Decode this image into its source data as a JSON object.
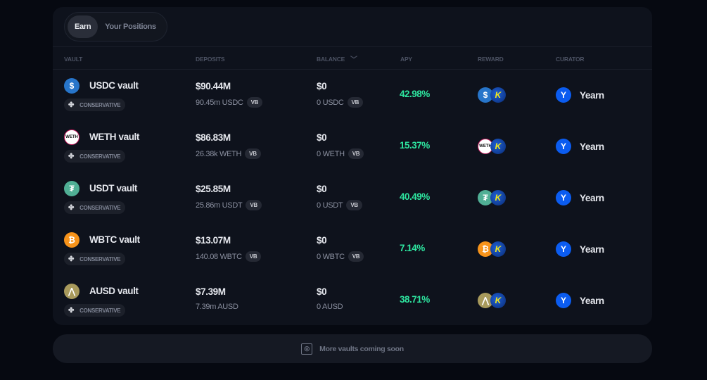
{
  "tabs": [
    "Earn",
    "Your Positions"
  ],
  "headers": {
    "vault": "VAULT",
    "deposits": "DEPOSITS",
    "balance": "BALANCE",
    "apy": "APY",
    "reward": "REWARD",
    "curator": "CURATOR"
  },
  "vaults": [
    {
      "name": "USDC vault",
      "risk": "CONSERVATIVE",
      "deposits": "$90.44M",
      "deposits_sub": "90.45m USDC",
      "deposits_badge": "VB",
      "balance": "$0",
      "balance_sub": "0 USDC",
      "balance_badge": "VB",
      "apy": "42.98%",
      "curator": "Yearn",
      "token_glyph": "$",
      "token_color": "#2775ca"
    },
    {
      "name": "WETH vault",
      "risk": "CONSERVATIVE",
      "deposits": "$86.83M",
      "deposits_sub": "26.38k WETH",
      "deposits_badge": "VB",
      "balance": "$0",
      "balance_sub": "0 WETH",
      "balance_badge": "VB",
      "apy": "15.37%",
      "curator": "Yearn",
      "token_glyph": "WETH",
      "token_color": "#ffffff"
    },
    {
      "name": "USDT vault",
      "risk": "CONSERVATIVE",
      "deposits": "$25.85M",
      "deposits_sub": "25.86m USDT",
      "deposits_badge": "VB",
      "balance": "$0",
      "balance_sub": "0 USDT",
      "balance_badge": "VB",
      "apy": "40.49%",
      "curator": "Yearn",
      "token_glyph": "₮",
      "token_color": "#50af95"
    },
    {
      "name": "WBTC vault",
      "risk": "CONSERVATIVE",
      "deposits": "$13.07M",
      "deposits_sub": "140.08 WBTC",
      "deposits_badge": "VB",
      "balance": "$0",
      "balance_sub": "0 WBTC",
      "balance_badge": "VB",
      "apy": "7.14%",
      "curator": "Yearn",
      "token_glyph": "₿",
      "token_color": "#f7931a"
    },
    {
      "name": "AUSD vault",
      "risk": "CONSERVATIVE",
      "deposits": "$7.39M",
      "deposits_sub": "7.39m AUSD",
      "deposits_badge": "",
      "balance": "$0",
      "balance_sub": "0 AUSD",
      "balance_badge": "",
      "apy": "38.71%",
      "curator": "Yearn",
      "token_glyph": "⋀",
      "token_color": "#a89a5c"
    }
  ],
  "reward_token_glyph": "K",
  "curator_glyph": "Y",
  "footer": "More vaults coming soon"
}
